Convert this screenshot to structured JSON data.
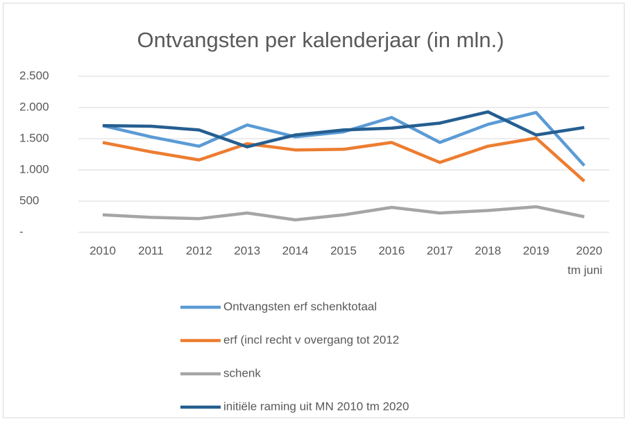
{
  "chart_data": {
    "type": "line",
    "title": "Ontvangsten per kalenderjaar (in mln.)",
    "categories": [
      "2010",
      "2011",
      "2012",
      "2013",
      "2014",
      "2015",
      "2016",
      "2017",
      "2018",
      "2019",
      "2020\ntm juni"
    ],
    "series": [
      {
        "name": "Ontvangsten erf schenktotaal",
        "color": "#5b9bd5",
        "values": [
          1710,
          1530,
          1380,
          1720,
          1530,
          1610,
          1840,
          1440,
          1730,
          1920,
          1070
        ]
      },
      {
        "name": "erf (incl recht v overgang tot 2012",
        "color": "#ed7d31",
        "values": [
          1440,
          1290,
          1160,
          1420,
          1320,
          1330,
          1440,
          1120,
          1380,
          1510,
          820
        ]
      },
      {
        "name": "schenk",
        "color": "#a5a5a5",
        "values": [
          280,
          240,
          220,
          310,
          200,
          280,
          400,
          310,
          350,
          410,
          250
        ]
      },
      {
        "name": "initiële raming uit MN 2010 tm 2020",
        "color": "#255e91",
        "values": [
          1710,
          1700,
          1640,
          1370,
          1560,
          1640,
          1670,
          1750,
          1930,
          1560,
          1680
        ]
      }
    ],
    "ylim": [
      0,
      2500
    ],
    "yticks": [
      {
        "value": 0,
        "label": "-"
      },
      500,
      {
        "value": 1000,
        "label": "1.000"
      },
      {
        "value": 1500,
        "label": "1.500"
      },
      {
        "value": 2000,
        "label": "2.000"
      },
      {
        "value": 2500,
        "label": "2.500"
      }
    ],
    "grid": true,
    "legend": "bottom"
  }
}
